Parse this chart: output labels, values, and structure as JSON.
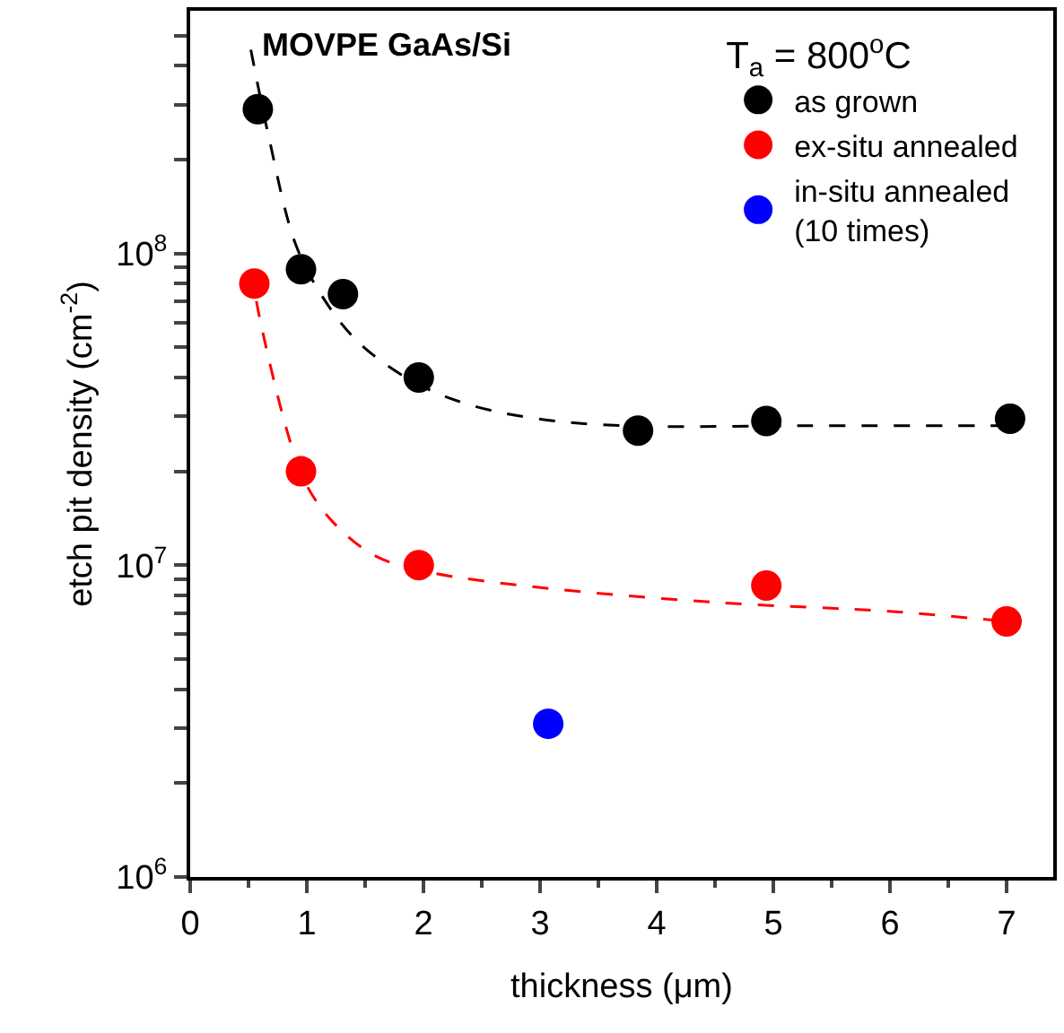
{
  "chart_data": {
    "type": "scatter",
    "xlabel": "thickness (μm)",
    "ylabel": "etch pit density (cm$^{-2}$)",
    "legend_title": "T$_{a}$ = 800$^{o}$C",
    "annotations": [
      "MOVPE GaAs/Si"
    ],
    "xlim": [
      0,
      7.4
    ],
    "xticks": [
      0,
      1,
      2,
      3,
      4,
      5,
      6,
      7
    ],
    "ylim": [
      1000000,
      600000000
    ],
    "log": true,
    "yticks": [
      {
        "value": 1000000,
        "label": "10$^{6}$"
      },
      {
        "value": 2000000,
        "label": null
      },
      {
        "value": 3000000,
        "label": null
      },
      {
        "value": 4000000,
        "label": null
      },
      {
        "value": 5000000,
        "label": null
      },
      {
        "value": 6000000,
        "label": null
      },
      {
        "value": 7000000,
        "label": null
      },
      {
        "value": 8000000,
        "label": null
      },
      {
        "value": 9000000,
        "label": null
      },
      {
        "value": 10000000,
        "label": "10$^{7}$"
      },
      {
        "value": 20000000,
        "label": null
      },
      {
        "value": 30000000,
        "label": null
      },
      {
        "value": 40000000,
        "label": null
      },
      {
        "value": 50000000,
        "label": null
      },
      {
        "value": 60000000,
        "label": null
      },
      {
        "value": 70000000,
        "label": null
      },
      {
        "value": 80000000,
        "label": null
      },
      {
        "value": 90000000,
        "label": null
      },
      {
        "value": 100000000,
        "label": "10$^{8}$"
      },
      {
        "value": 200000000,
        "label": null
      },
      {
        "value": 300000000,
        "label": null
      },
      {
        "value": 400000000,
        "label": null
      },
      {
        "value": 500000000,
        "label": null
      }
    ],
    "legend": "top right",
    "marker": "circle",
    "series": [
      {
        "name": "as grown",
        "color": "#000000",
        "x": [
          0.58,
          0.95,
          1.31,
          1.96,
          3.84,
          4.94,
          7.03
        ],
        "values": [
          290000000,
          89000000,
          74000000,
          40000000,
          27000000,
          29000000,
          29500000
        ]
      },
      {
        "name": "ex-situ annealed",
        "color": "#ff0000",
        "x": [
          0.55,
          0.95,
          1.96,
          4.94,
          7.0
        ],
        "values": [
          80000000,
          20000000,
          10000000,
          8600000,
          6600000
        ]
      },
      {
        "name": "in-situ annealed\n(10 times)",
        "color": "#0000ff",
        "x": [
          3.07
        ],
        "values": [
          3100000
        ]
      },
      {
        "type": "line",
        "line_style": "dashed",
        "marker": "none",
        "color": "#000000",
        "x": [
          0.52,
          0.67,
          0.9,
          1.13,
          1.44,
          1.9,
          2.36,
          2.97,
          3.73,
          5.26,
          7.02
        ],
        "values": [
          450000000,
          240000000,
          108000000,
          73000000,
          52000000,
          39000000,
          33000000,
          29500000,
          28000000,
          28000000,
          28000000
        ]
      },
      {
        "type": "line",
        "line_style": "dashed",
        "marker": "none",
        "color": "#ff0000",
        "x": [
          0.52,
          0.6,
          0.83,
          0.98,
          1.22,
          1.59,
          2.05,
          2.97,
          4.5,
          6.02,
          7.0
        ],
        "values": [
          89000000,
          61000000,
          27000000,
          18600000,
          13800000,
          10700000,
          9500000,
          8500000,
          7600000,
          7100000,
          6600000
        ]
      }
    ]
  }
}
